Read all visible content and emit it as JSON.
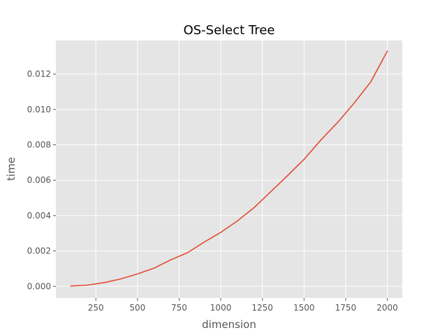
{
  "chart_data": {
    "type": "line",
    "title": "OS-Select Tree",
    "xlabel": "dimension",
    "ylabel": "time",
    "xlim": [
      10,
      2090
    ],
    "ylim": [
      -0.00066,
      0.0139
    ],
    "xticks": [
      250,
      500,
      750,
      1000,
      1250,
      1500,
      1750,
      2000
    ],
    "xtick_labels": [
      "250",
      "500",
      "750",
      "1000",
      "1250",
      "1500",
      "1750",
      "2000"
    ],
    "yticks": [
      0.0,
      0.002,
      0.004,
      0.006,
      0.008,
      0.01,
      0.012
    ],
    "ytick_labels": [
      "0.000",
      "0.002",
      "0.004",
      "0.006",
      "0.008",
      "0.010",
      "0.012"
    ],
    "grid": true,
    "background_color": "#e5e5e5",
    "grid_color": "#ffffff",
    "series": [
      {
        "color": "#e24a33",
        "x": [
          100,
          200,
          300,
          400,
          500,
          600,
          700,
          800,
          900,
          1000,
          1100,
          1200,
          1300,
          1400,
          1500,
          1600,
          1700,
          1800,
          1900,
          2000
        ],
        "y": [
          2e-05,
          7e-05,
          0.00021,
          0.00042,
          0.0007,
          0.00103,
          0.0015,
          0.0019,
          0.0025,
          0.00305,
          0.0037,
          0.00445,
          0.00535,
          0.00625,
          0.00718,
          0.00826,
          0.00925,
          0.01035,
          0.01155,
          0.0133
        ]
      }
    ]
  }
}
